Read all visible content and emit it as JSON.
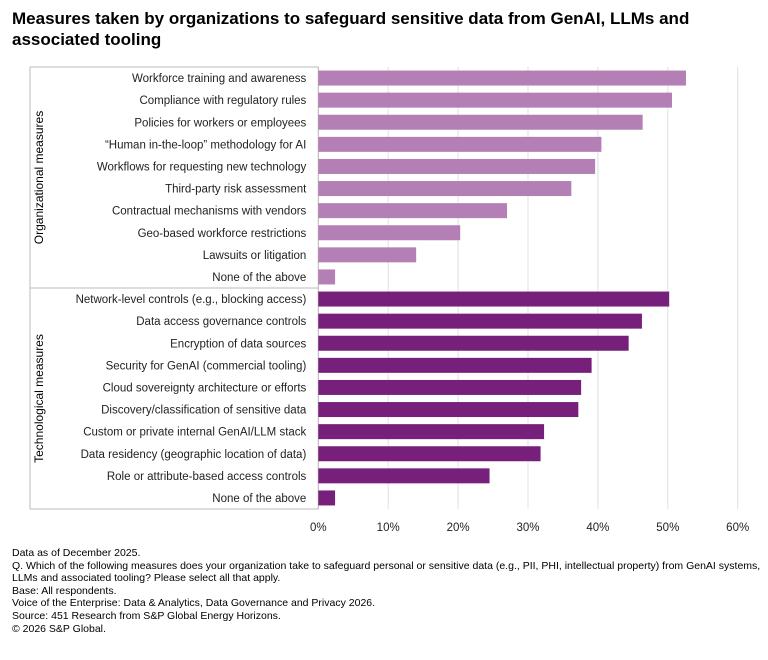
{
  "title": "Measures taken by organizations to safeguard sensitive data from GenAI, LLMs and associated tooling",
  "chart_data": {
    "type": "bar",
    "orientation": "horizontal",
    "xlim": [
      0,
      60
    ],
    "xticks": [
      "0%",
      "10%",
      "20%",
      "30%",
      "40%",
      "50%",
      "60%"
    ],
    "grid": true,
    "colors": {
      "Organizational measures": "#b37fb5",
      "Technological measures": "#76207c"
    },
    "groups": [
      {
        "name": "Organizational measures",
        "categories": [
          "Workforce training and awareness",
          "Compliance with regulatory rules",
          "Policies for workers or employees",
          "“Human in-the-loop” methodology for AI",
          "Workflows for requesting new technology",
          "Third-party risk assessment",
          "Contractual mechanisms with vendors",
          "Geo-based workforce restrictions",
          "Lawsuits or litigation",
          "None of the above"
        ],
        "values": [
          52.6,
          50.6,
          46.4,
          40.5,
          39.6,
          36.2,
          27.0,
          20.3,
          14.0,
          2.4
        ]
      },
      {
        "name": "Technological measures",
        "categories": [
          "Network-level controls (e.g., blocking access)",
          "Data access governance controls",
          "Encryption of data sources",
          "Security for GenAI (commercial tooling)",
          "Cloud sovereignty architecture or efforts",
          "Discovery/classification of sensitive data",
          "Custom or private internal GenAI/LLM stack",
          "Data residency (geographic location of data)",
          "Role or attribute-based access controls",
          "None of the above"
        ],
        "values": [
          50.2,
          46.3,
          44.4,
          39.1,
          37.6,
          37.2,
          32.3,
          31.8,
          24.5,
          2.4
        ]
      }
    ]
  },
  "notes": [
    "Data as of December 2025.",
    "Q. Which of the following measures does your organization take to safeguard personal or sensitive data (e.g., PII, PHI, intellectual property) from GenAI systems, LLMs and associated tooling? Please select all that apply.",
    "Base: All respondents.",
    "Voice of the Enterprise: Data & Analytics, Data Governance and Privacy 2026.",
    "Source: 451 Research from S&P Global Energy Horizons.",
    "© 2026 S&P Global."
  ]
}
